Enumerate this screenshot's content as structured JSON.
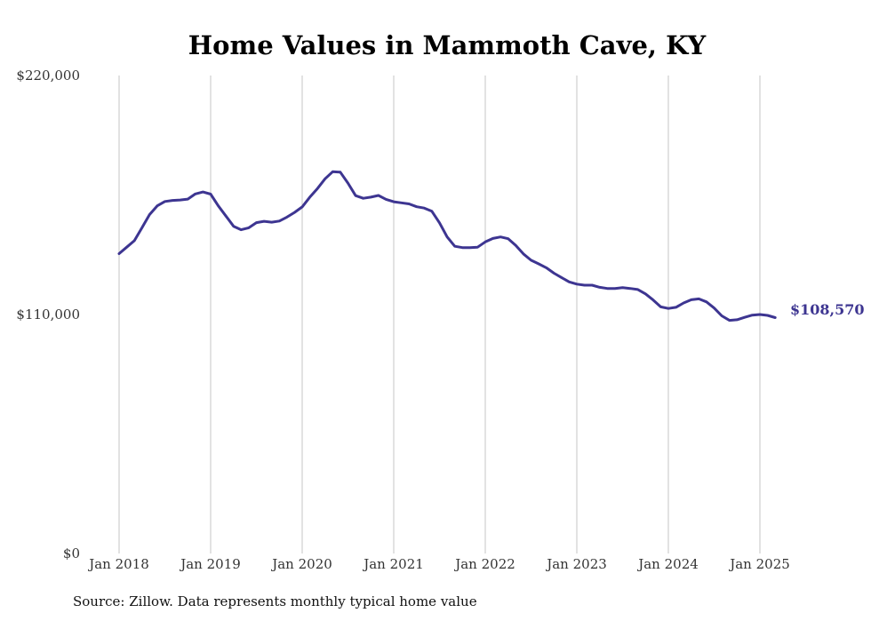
{
  "chart_data": {
    "type": "line",
    "title": "Home Values in Mammoth Cave, KY",
    "ylim": [
      0,
      220000
    ],
    "y_ticks": [
      {
        "value": 0,
        "label": "$0"
      },
      {
        "value": 110000,
        "label": "$110,000"
      },
      {
        "value": 220000,
        "label": "$220,000"
      }
    ],
    "x_ticks": [
      {
        "value": "2018-01",
        "label": "Jan 2018"
      },
      {
        "value": "2019-01",
        "label": "Jan 2019"
      },
      {
        "value": "2020-01",
        "label": "Jan 2020"
      },
      {
        "value": "2021-01",
        "label": "Jan 2021"
      },
      {
        "value": "2022-01",
        "label": "Jan 2022"
      },
      {
        "value": "2023-01",
        "label": "Jan 2023"
      },
      {
        "value": "2024-01",
        "label": "Jan 2024"
      },
      {
        "value": "2025-01",
        "label": "Jan 2025"
      }
    ],
    "grid": "vertical",
    "end_label": "$108,570",
    "line_color": "#3d3591",
    "series": [
      {
        "x": [
          "2018-01",
          "2018-02",
          "2018-03",
          "2018-04",
          "2018-05",
          "2018-06",
          "2018-07",
          "2018-08",
          "2018-09",
          "2018-10",
          "2018-11",
          "2018-12",
          "2019-01",
          "2019-02",
          "2019-03",
          "2019-04",
          "2019-05",
          "2019-06",
          "2019-07",
          "2019-08",
          "2019-09",
          "2019-10",
          "2019-11",
          "2019-12",
          "2020-01",
          "2020-02",
          "2020-03",
          "2020-04",
          "2020-05",
          "2020-06",
          "2020-07",
          "2020-08",
          "2020-09",
          "2020-10",
          "2020-11",
          "2020-12",
          "2021-01",
          "2021-02",
          "2021-03",
          "2021-04",
          "2021-05",
          "2021-06",
          "2021-07",
          "2021-08",
          "2021-09",
          "2021-10",
          "2021-11",
          "2021-12",
          "2022-01",
          "2022-02",
          "2022-03",
          "2022-04",
          "2022-05",
          "2022-06",
          "2022-07",
          "2022-08",
          "2022-09",
          "2022-10",
          "2022-11",
          "2022-12",
          "2023-01",
          "2023-02",
          "2023-03",
          "2023-04",
          "2023-05",
          "2023-06",
          "2023-07",
          "2023-08",
          "2023-09",
          "2023-10",
          "2023-11",
          "2023-12",
          "2024-01",
          "2024-02",
          "2024-03",
          "2024-04",
          "2024-05",
          "2024-06",
          "2024-07",
          "2024-08",
          "2024-09",
          "2024-10",
          "2024-11",
          "2024-12",
          "2025-01",
          "2025-02",
          "2025-03"
        ],
        "values": [
          138000,
          141000,
          144000,
          150000,
          156000,
          160000,
          162000,
          162500,
          162700,
          163100,
          165500,
          166400,
          165400,
          160000,
          155300,
          150600,
          149000,
          149900,
          152300,
          152900,
          152500,
          153000,
          154800,
          157000,
          159500,
          164000,
          168000,
          172500,
          175700,
          175500,
          170500,
          164700,
          163500,
          164000,
          164800,
          163000,
          161900,
          161400,
          160900,
          159600,
          159000,
          157500,
          152200,
          145700,
          141400,
          140800,
          140800,
          141000,
          143400,
          145000,
          145700,
          144900,
          141800,
          137900,
          135000,
          133300,
          131500,
          129000,
          127000,
          125000,
          124000,
          123500,
          123500,
          122500,
          122000,
          122000,
          122400,
          122000,
          121500,
          119500,
          116700,
          113500,
          112800,
          113300,
          115300,
          116800,
          117200,
          115800,
          113000,
          109400,
          107300,
          107600,
          108700,
          109700,
          110000,
          109600,
          108570
        ]
      }
    ]
  },
  "footer": {
    "source": "Source: Zillow. Data represents monthly typical home value"
  }
}
